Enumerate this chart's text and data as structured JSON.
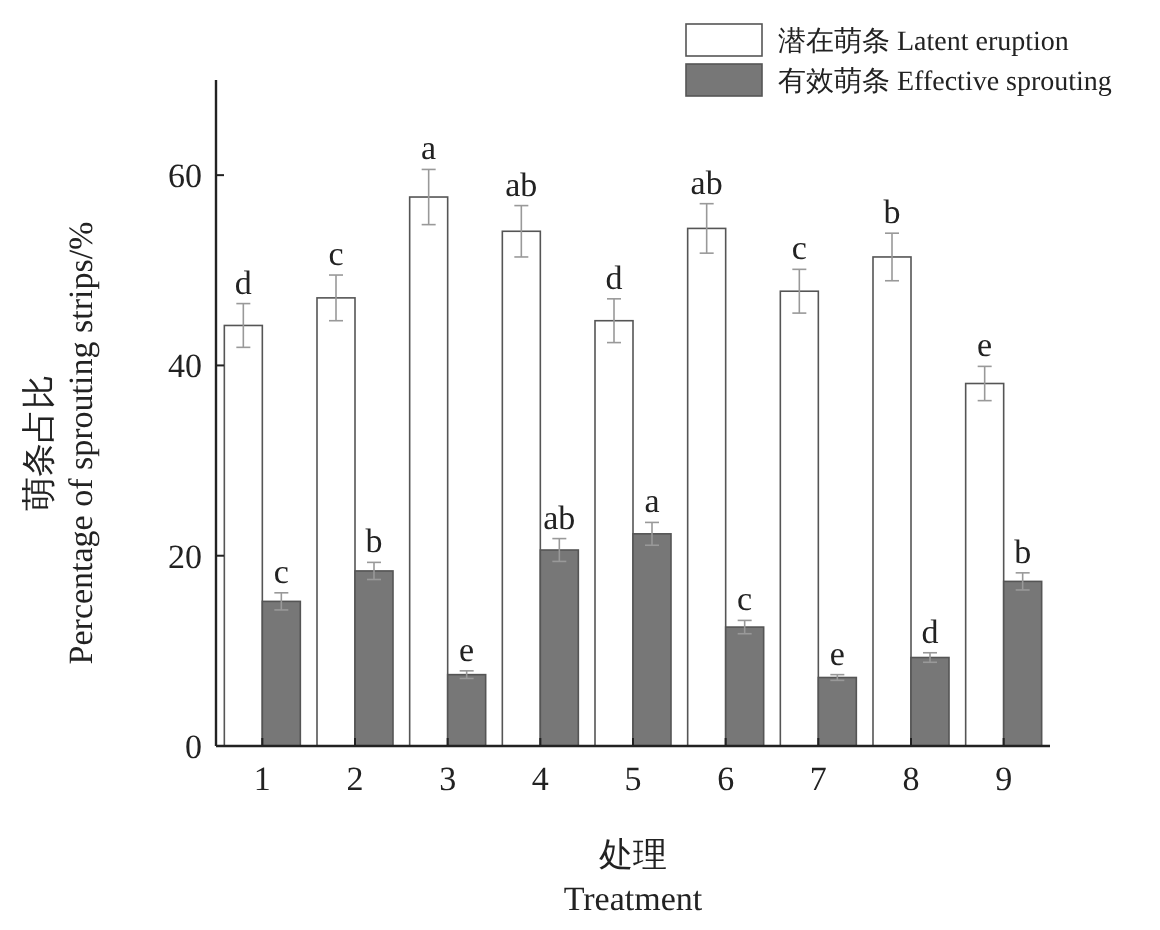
{
  "chart_data": {
    "type": "bar",
    "xlabel": "处理\nTreatment",
    "ylabel": "萌条占比\nPercentage of sprouting strips/%",
    "categories": [
      "1",
      "2",
      "3",
      "4",
      "5",
      "6",
      "7",
      "8",
      "9"
    ],
    "ylim": [
      0,
      70
    ],
    "yticks": [
      0,
      20,
      40,
      60
    ],
    "grid": false,
    "legend": "top right",
    "series": [
      {
        "name": "潜在萌条 Latent eruption",
        "color": "#ffffff",
        "values": [
          44.2,
          47.1,
          57.7,
          54.1,
          44.7,
          54.4,
          47.8,
          51.4,
          38.1
        ],
        "errors": [
          2.3,
          2.4,
          2.9,
          2.7,
          2.3,
          2.6,
          2.3,
          2.5,
          1.8
        ],
        "value_labels": [
          "d",
          "c",
          "a",
          "ab",
          "d",
          "ab",
          "c",
          "b",
          "e"
        ]
      },
      {
        "name": "有效萌条 Effective sprouting",
        "color": "#777777",
        "values": [
          15.2,
          18.4,
          7.5,
          20.6,
          22.3,
          12.5,
          7.2,
          9.3,
          17.3
        ],
        "errors": [
          0.9,
          0.9,
          0.4,
          1.2,
          1.2,
          0.7,
          0.3,
          0.5,
          0.9
        ],
        "value_labels": [
          "c",
          "b",
          "e",
          "ab",
          "a",
          "c",
          "e",
          "d",
          "b"
        ]
      }
    ]
  }
}
